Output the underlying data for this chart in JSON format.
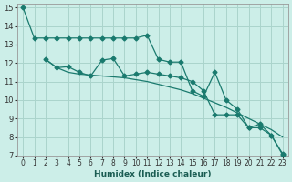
{
  "xlabel": "Humidex (Indice chaleur)",
  "bg_color": "#cceee8",
  "grid_color": "#aad4cc",
  "line_color": "#1a7a6e",
  "xlim": [
    -0.5,
    23.5
  ],
  "ylim": [
    7,
    15.2
  ],
  "xticks": [
    0,
    1,
    2,
    3,
    4,
    5,
    6,
    7,
    8,
    9,
    10,
    11,
    12,
    13,
    14,
    15,
    16,
    17,
    18,
    19,
    20,
    21,
    22,
    23
  ],
  "yticks": [
    7,
    8,
    9,
    10,
    11,
    12,
    13,
    14,
    15
  ],
  "line1_x": [
    0,
    1,
    2,
    3,
    4,
    5,
    6,
    7,
    8,
    9,
    10,
    11,
    12,
    13,
    14,
    15,
    16,
    17,
    18,
    19,
    20,
    21,
    22,
    23
  ],
  "line1_y": [
    15.0,
    13.35,
    13.35,
    13.35,
    13.35,
    13.35,
    13.35,
    13.35,
    13.35,
    13.35,
    13.35,
    13.5,
    12.2,
    12.05,
    12.05,
    10.5,
    10.2,
    11.5,
    10.0,
    9.5,
    8.5,
    8.7,
    8.1,
    7.05
  ],
  "line2_x": [
    2,
    3,
    4,
    5,
    6,
    7,
    8,
    9,
    10,
    11,
    12,
    13,
    14,
    15,
    16,
    17,
    18,
    19,
    20,
    21,
    22,
    23
  ],
  "line2_y": [
    12.2,
    11.75,
    11.8,
    11.5,
    11.3,
    12.15,
    12.25,
    11.3,
    11.4,
    11.5,
    11.4,
    11.3,
    11.2,
    11.0,
    10.5,
    9.2,
    9.2,
    9.2,
    8.5,
    8.5,
    8.1,
    7.1
  ],
  "line3_x": [
    2,
    3,
    4,
    5,
    6,
    7,
    8,
    9,
    10,
    11,
    12,
    13,
    14,
    15,
    16,
    17,
    18,
    19,
    20,
    21,
    22,
    23
  ],
  "line3_y": [
    12.2,
    11.75,
    11.5,
    11.4,
    11.35,
    11.3,
    11.25,
    11.2,
    11.1,
    11.0,
    10.85,
    10.7,
    10.55,
    10.35,
    10.1,
    9.85,
    9.6,
    9.3,
    9.0,
    8.7,
    8.4,
    8.0
  ]
}
